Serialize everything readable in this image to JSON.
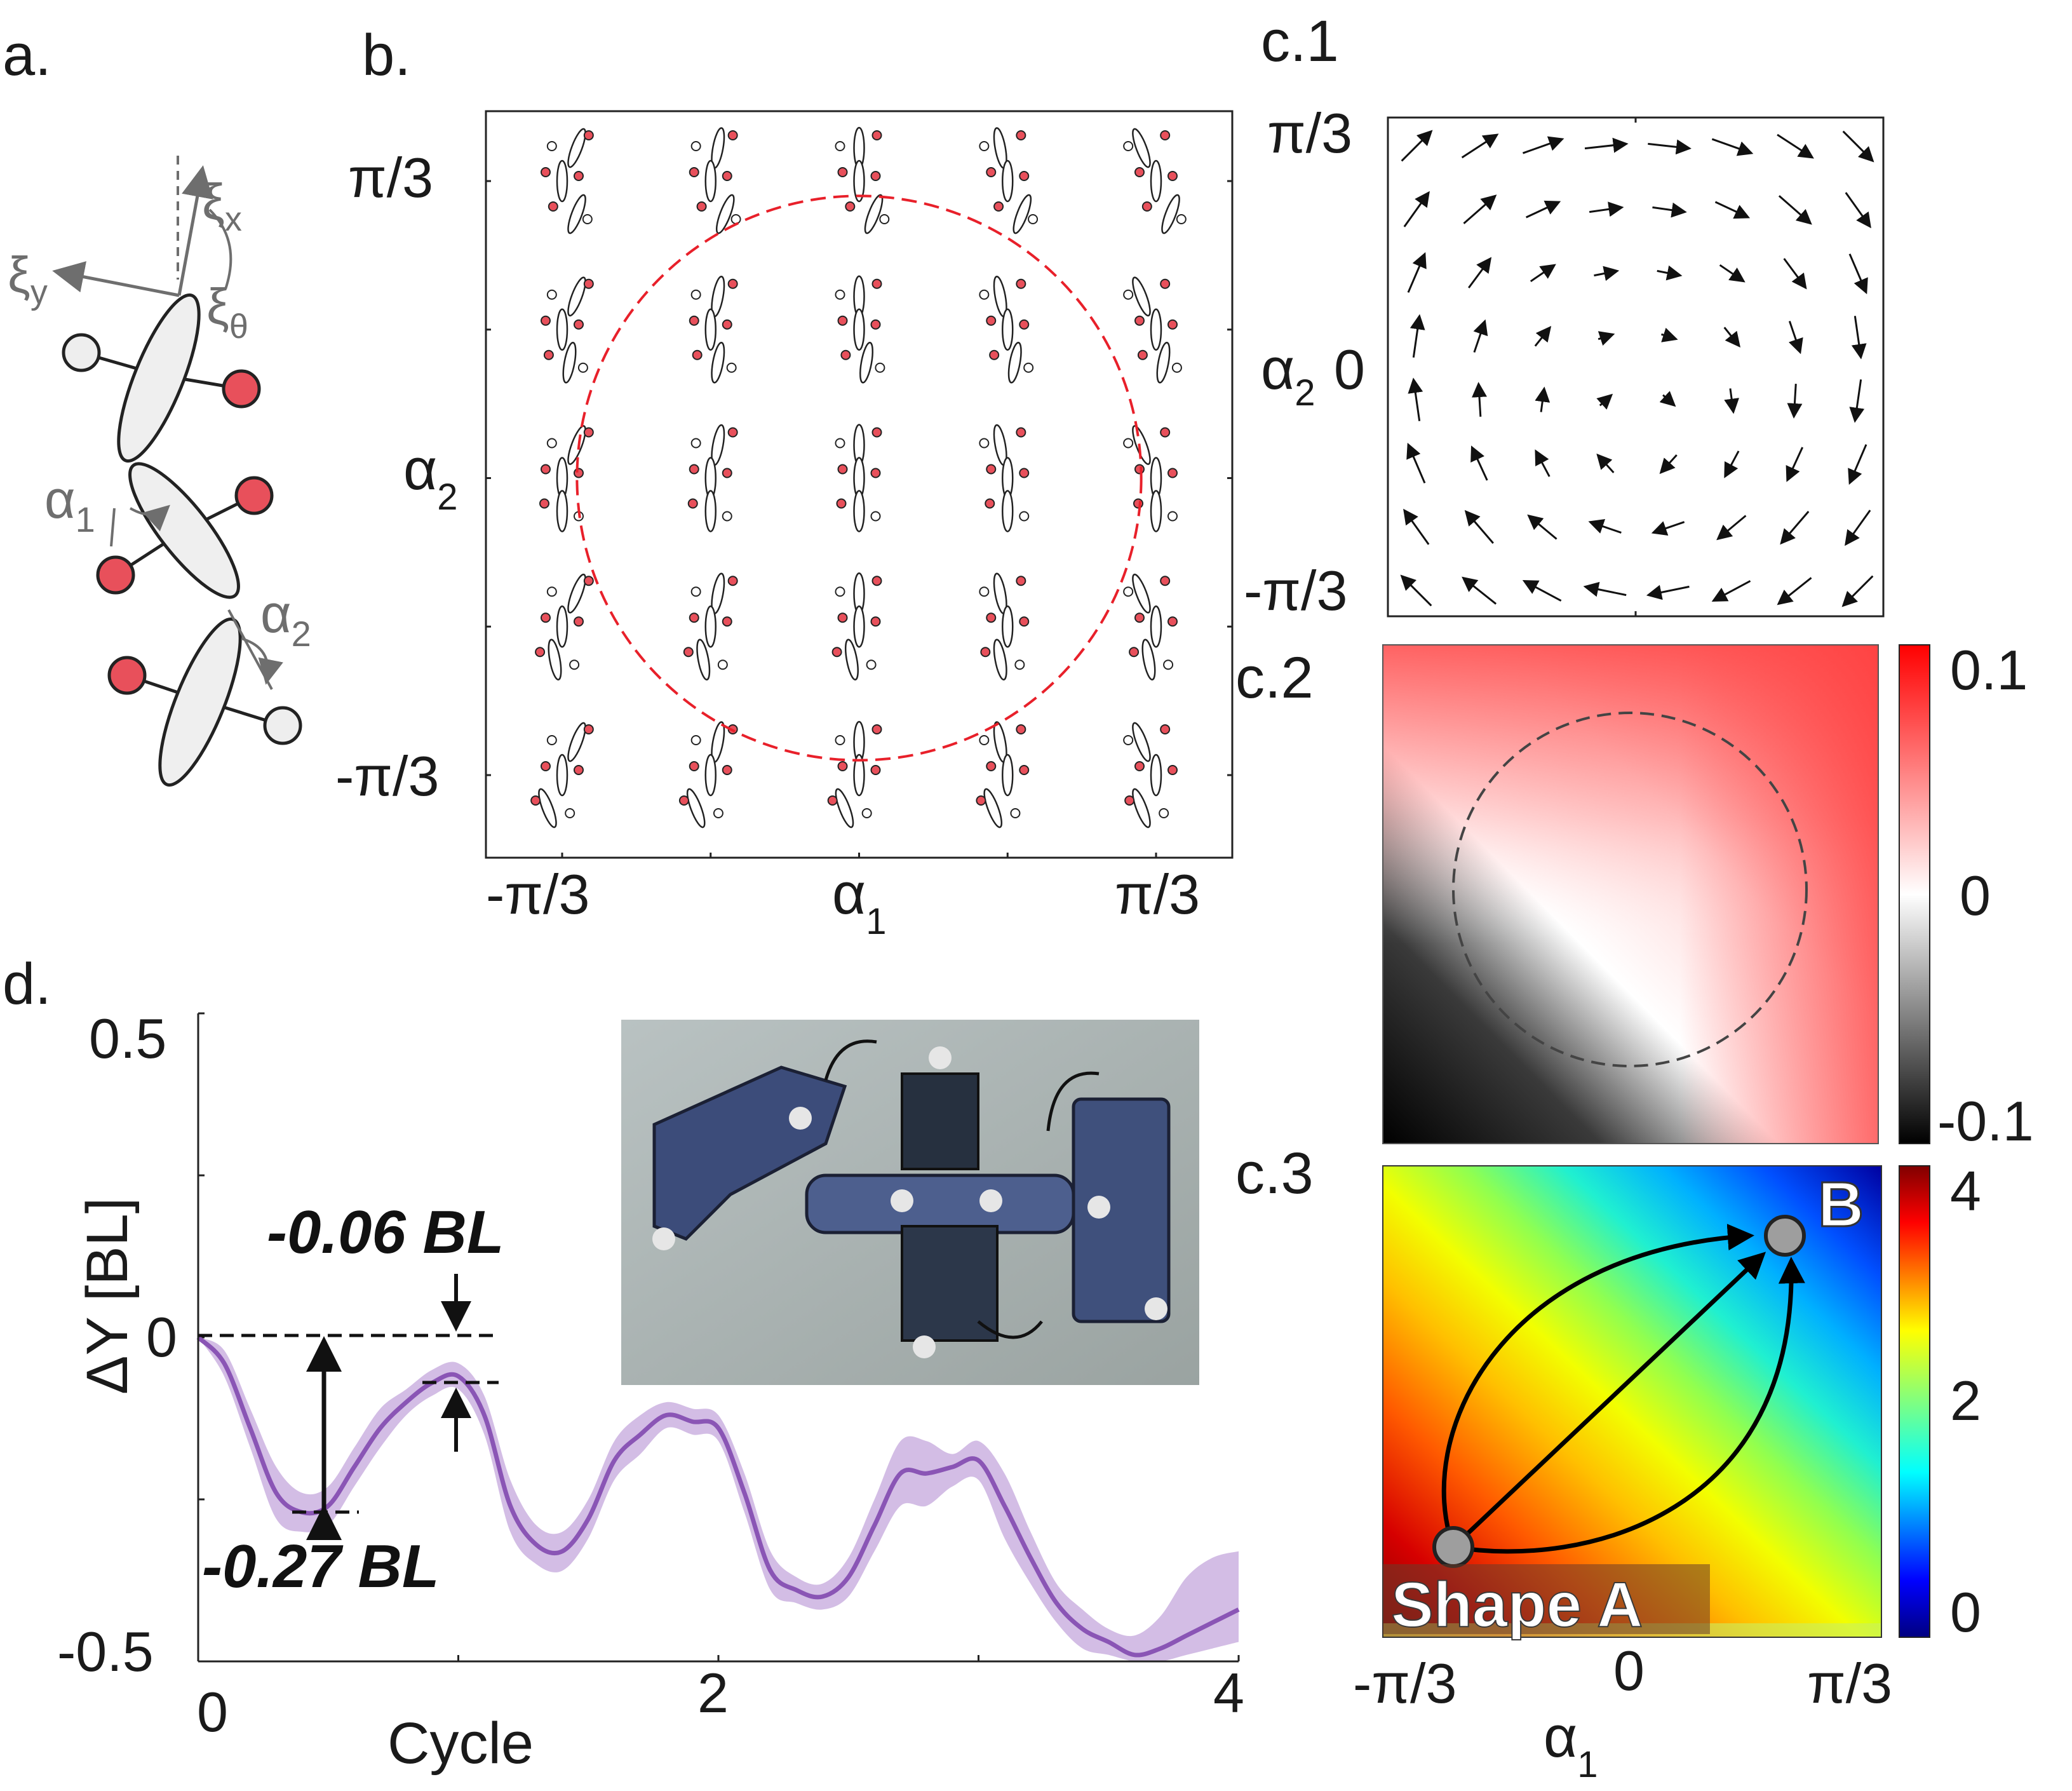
{
  "panel_labels": {
    "a": "a.",
    "b": "b.",
    "c1": "c.1",
    "c2": "c.2",
    "c3": "c.3",
    "d": "d."
  },
  "panel_a": {
    "xi_x": "ξ",
    "xi_x_sub": "x",
    "xi_y": "ξ",
    "xi_y_sub": "y",
    "xi_theta": "ξ",
    "xi_theta_sub": "θ",
    "alpha1": "α",
    "alpha1_sub": "1",
    "alpha2": "α",
    "alpha2_sub": "2",
    "colors": {
      "body_fill": "#efefef",
      "red_foot": "#e8505b",
      "white_foot": "#eeeeee",
      "arrow": "#6e6e6e"
    }
  },
  "panel_b": {
    "y_ticks": [
      "π/3",
      "-π/3"
    ],
    "x_ticks": [
      "-π/3",
      "π/3"
    ],
    "xlabel": "α",
    "xlabel_sub": "1",
    "ylabel": "α",
    "ylabel_sub": "2",
    "grid_values": [
      -1.0472,
      -0.5236,
      0,
      0.5236,
      1.0472
    ],
    "circle_radius": 0.95,
    "circle_color": "#e8202a"
  },
  "panel_c1": {
    "y_ticks": [
      "π/3",
      "0",
      "-π/3"
    ],
    "ylabel": "α",
    "ylabel_sub": "2"
  },
  "panel_c2": {
    "colorbar_ticks": [
      "0.1",
      "0",
      "-0.1"
    ]
  },
  "panel_c3": {
    "colorbar_ticks": [
      "4",
      "2",
      "0"
    ],
    "x_ticks": [
      "-π/3",
      "0",
      "π/3"
    ],
    "xlabel": "α",
    "xlabel_sub": "1",
    "point_a": "Shape A",
    "point_b": "B"
  },
  "panel_d": {
    "y_ticks": [
      "0.5",
      "0",
      "-0.5"
    ],
    "x_ticks": [
      "0",
      "2",
      "4"
    ],
    "xlabel": "Cycle",
    "ylabel": "ΔY [BL]",
    "annotation_top": "-0.06 BL",
    "annotation_bottom": "-0.27 BL",
    "line_color": "#8a55b5",
    "band_color": "#cbb2e0"
  },
  "chart_data": {
    "type": "line",
    "title": "",
    "xlabel": "Cycle",
    "ylabel": "ΔY [BL]",
    "xlim": [
      0,
      4
    ],
    "ylim": [
      -0.5,
      0.5
    ],
    "x": [
      0,
      0.1,
      0.2,
      0.3,
      0.4,
      0.5,
      0.6,
      0.7,
      0.8,
      0.9,
      1.0,
      1.1,
      1.2,
      1.3,
      1.4,
      1.5,
      1.6,
      1.7,
      1.8,
      1.9,
      2.0,
      2.1,
      2.2,
      2.3,
      2.4,
      2.5,
      2.6,
      2.7,
      2.8,
      2.9,
      3.0,
      3.1,
      3.2,
      3.3,
      3.4,
      3.5,
      3.6,
      3.7,
      3.8,
      3.9,
      4.0
    ],
    "series": [
      {
        "name": "mean",
        "values": [
          0,
          -0.04,
          -0.14,
          -0.24,
          -0.27,
          -0.26,
          -0.2,
          -0.14,
          -0.1,
          -0.07,
          -0.06,
          -0.12,
          -0.26,
          -0.32,
          -0.33,
          -0.28,
          -0.19,
          -0.15,
          -0.12,
          -0.13,
          -0.14,
          -0.24,
          -0.36,
          -0.39,
          -0.4,
          -0.37,
          -0.29,
          -0.21,
          -0.21,
          -0.2,
          -0.19,
          -0.26,
          -0.34,
          -0.41,
          -0.45,
          -0.47,
          -0.49,
          -0.48,
          -0.46,
          -0.44,
          -0.42
        ]
      },
      {
        "name": "upper",
        "values": [
          0,
          -0.02,
          -0.11,
          -0.2,
          -0.24,
          -0.23,
          -0.17,
          -0.11,
          -0.08,
          -0.05,
          -0.04,
          -0.09,
          -0.22,
          -0.29,
          -0.3,
          -0.25,
          -0.16,
          -0.12,
          -0.1,
          -0.11,
          -0.12,
          -0.21,
          -0.33,
          -0.37,
          -0.38,
          -0.34,
          -0.25,
          -0.16,
          -0.16,
          -0.18,
          -0.16,
          -0.21,
          -0.3,
          -0.38,
          -0.42,
          -0.45,
          -0.46,
          -0.43,
          -0.37,
          -0.34,
          -0.33
        ]
      },
      {
        "name": "lower",
        "values": [
          0,
          -0.06,
          -0.17,
          -0.28,
          -0.3,
          -0.29,
          -0.23,
          -0.17,
          -0.12,
          -0.09,
          -0.08,
          -0.15,
          -0.3,
          -0.35,
          -0.36,
          -0.31,
          -0.22,
          -0.18,
          -0.14,
          -0.15,
          -0.16,
          -0.27,
          -0.39,
          -0.41,
          -0.42,
          -0.4,
          -0.33,
          -0.26,
          -0.26,
          -0.23,
          -0.22,
          -0.31,
          -0.38,
          -0.44,
          -0.48,
          -0.49,
          -0.5,
          -0.5,
          -0.49,
          -0.48,
          -0.47
        ]
      }
    ]
  }
}
